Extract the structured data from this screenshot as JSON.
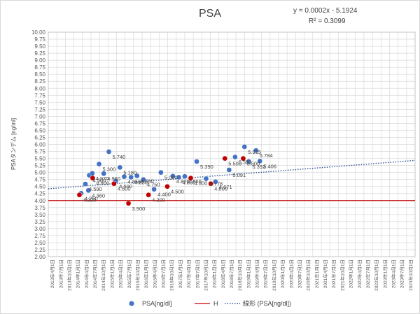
{
  "chart_data": {
    "type": "scatter",
    "title": "PSA",
    "trendline_equation": "y = 0.0002x - 5.1924",
    "trendline_r2": "R² = 0.3099",
    "ylabel": "PSAタンデム [ng/ml]",
    "xlabel": "",
    "ylim": [
      2.0,
      10.0
    ],
    "ystep": 0.25,
    "grid": true,
    "legend_placement": "bottom",
    "colors": {
      "psa": "#4472c4",
      "h": "#c00000",
      "h_point": "#c00000",
      "trend": "#2f5597",
      "grid": "#d9d9d9"
    },
    "x_categories": [
      "2013年4月1日",
      "2013年7月1日",
      "2013年10月1日",
      "2014年1月1日",
      "2014年4月1日",
      "2014年7月1日",
      "2014年10月1日",
      "2015年1月1日",
      "2015年4月1日",
      "2015年7月1日",
      "2015年10月1日",
      "2016年1月1日",
      "2016年4月1日",
      "2016年7月1日",
      "2016年10月1日",
      "2017年1月1日",
      "2017年4月1日",
      "2017年7月1日",
      "2017年10月1日",
      "2018年1月1日",
      "2018年4月1日",
      "2018年7月1日",
      "2018年10月1日",
      "2019年1月1日",
      "2019年4月1日",
      "2019年7月1日",
      "2019年10月1日",
      "2020年1月1日",
      "2020年4月1日",
      "2020年7月1日",
      "2020年10月1日",
      "2021年1月1日",
      "2021年4月1日",
      "2021年7月1日",
      "2021年10月1日",
      "2022年1月1日",
      "2022年4月1日",
      "2022年7月1日",
      "2022年10月1日",
      "2023年1月1日",
      "2023年4月1日",
      "2023年7月1日",
      "2023年10月1日"
    ],
    "series": [
      {
        "name": "PSA[ng/dl]",
        "marker": "circle",
        "points": [
          {
            "x": 3.85,
            "y": 4.26,
            "label": "4.260"
          },
          {
            "x": 4.35,
            "y": 4.59,
            "label": "4.590"
          },
          {
            "x": 4.7,
            "y": 4.36,
            "label": "4.360"
          },
          {
            "x": 4.8,
            "y": 4.9,
            "label": "4.900"
          },
          {
            "x": 5.15,
            "y": 4.97,
            "label": "4.970"
          },
          {
            "x": 5.95,
            "y": 5.3,
            "label": "5.300"
          },
          {
            "x": 6.5,
            "y": 4.96,
            "label": "4.960"
          },
          {
            "x": 7.1,
            "y": 5.74,
            "label": "5.740"
          },
          {
            "x": 7.9,
            "y": 4.69,
            "label": "4.690"
          },
          {
            "x": 8.4,
            "y": 5.18,
            "label": "5.180"
          },
          {
            "x": 8.9,
            "y": 4.85,
            "label": "4.850"
          },
          {
            "x": 9.7,
            "y": 4.83,
            "label": "4.830"
          },
          {
            "x": 10.4,
            "y": 4.88,
            "label": "4.880"
          },
          {
            "x": 11.15,
            "y": 4.75,
            "label": "4.750"
          },
          {
            "x": 12.4,
            "y": 4.4,
            "label": "4.400"
          },
          {
            "x": 13.2,
            "y": 5.0,
            "label": "5.000"
          },
          {
            "x": 14.6,
            "y": 4.87,
            "label": "4.870"
          },
          {
            "x": 15.3,
            "y": 4.83,
            "label": "4.830"
          },
          {
            "x": 16.0,
            "y": 4.86,
            "label": "4.860"
          },
          {
            "x": 17.4,
            "y": 5.39,
            "label": "5.390"
          },
          {
            "x": 18.5,
            "y": 4.778,
            "label": "4.778"
          },
          {
            "x": 19.6,
            "y": 4.671,
            "label": "4.671"
          },
          {
            "x": 21.2,
            "y": 5.091,
            "label": "5.091"
          },
          {
            "x": 21.9,
            "y": 5.551,
            "label": "5.551"
          },
          {
            "x": 23.0,
            "y": 5.915,
            "label": "5.915"
          },
          {
            "x": 23.5,
            "y": 5.392,
            "label": "5.392"
          },
          {
            "x": 24.35,
            "y": 5.784,
            "label": "5.784"
          },
          {
            "x": 24.8,
            "y": 5.406,
            "label": "5.406"
          }
        ]
      },
      {
        "name": "H",
        "marker": "line",
        "reference_value": 4.0,
        "points": [
          {
            "x": 3.65,
            "y": 4.2,
            "label": "4.200"
          },
          {
            "x": 5.2,
            "y": 4.8,
            "label": "4.800"
          },
          {
            "x": 7.7,
            "y": 4.6,
            "label": "4.600"
          },
          {
            "x": 9.4,
            "y": 3.9,
            "label": "3.900"
          },
          {
            "x": 11.75,
            "y": 4.2,
            "label": "4.200"
          },
          {
            "x": 13.95,
            "y": 4.5,
            "label": "4.500"
          },
          {
            "x": 16.7,
            "y": 4.8,
            "label": "4.800"
          },
          {
            "x": 19.05,
            "y": 4.6,
            "label": "4.600"
          },
          {
            "x": 20.7,
            "y": 5.5,
            "label": "5.500"
          },
          {
            "x": 22.85,
            "y": 5.5,
            "label": "5.500"
          }
        ]
      },
      {
        "name": "線形 (PSA[ng/dl])",
        "marker": "dotted-line",
        "trend": {
          "y_start": 4.42,
          "y_end": 5.43
        }
      }
    ]
  }
}
